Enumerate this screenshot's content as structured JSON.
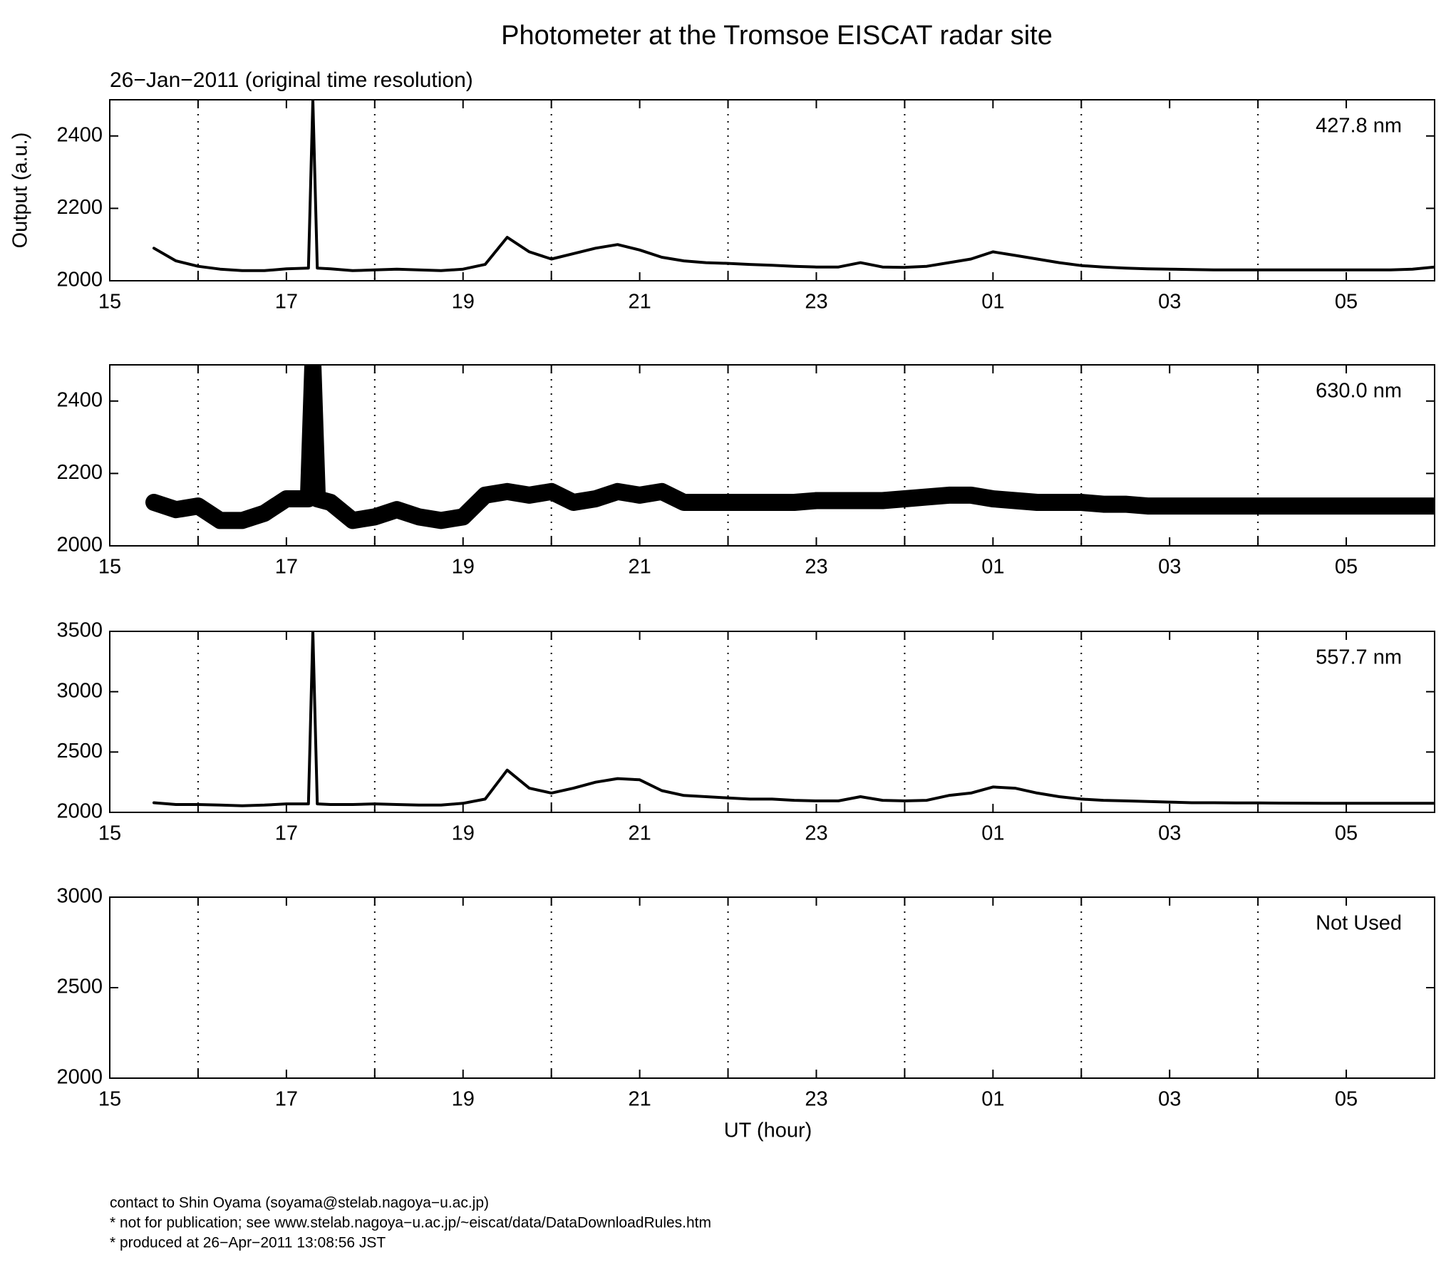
{
  "title": "Photometer at the Tromsoe EISCAT radar site",
  "subtitle": "26−Jan−2011 (original time resolution)",
  "footer": [
    "contact to Shin Oyama (soyama@stelab.nagoya−u.ac.jp)",
    "* not for publication; see www.stelab.nagoya−u.ac.jp/~eiscat/data/DataDownloadRules.htm",
    "* produced at 26−Apr−2011 13:08:56 JST"
  ],
  "chart_data": [
    {
      "type": "line",
      "label": "427.8 nm",
      "ylabel": "Output (a.u.)",
      "x": [
        15.5,
        15.75,
        16,
        16.25,
        16.5,
        16.75,
        17,
        17.25,
        17.3,
        17.35,
        17.5,
        17.75,
        18,
        18.25,
        18.5,
        18.75,
        19,
        19.25,
        19.5,
        19.75,
        20,
        20.25,
        20.5,
        20.75,
        21,
        21.25,
        21.5,
        21.75,
        22,
        22.25,
        22.5,
        22.75,
        23,
        23.25,
        23.5,
        23.75,
        24,
        24.25,
        24.5,
        24.75,
        25,
        25.25,
        25.5,
        25.75,
        26,
        26.25,
        26.5,
        26.75,
        27,
        27.25,
        27.5,
        27.75,
        28,
        28.25,
        28.5,
        28.75,
        29,
        29.25,
        29.5,
        29.75,
        30
      ],
      "values": [
        2090,
        2055,
        2040,
        2032,
        2028,
        2028,
        2033,
        2035,
        2500,
        2035,
        2033,
        2028,
        2030,
        2032,
        2030,
        2028,
        2032,
        2045,
        2120,
        2080,
        2060,
        2075,
        2090,
        2100,
        2085,
        2065,
        2055,
        2050,
        2048,
        2045,
        2043,
        2040,
        2038,
        2038,
        2050,
        2038,
        2037,
        2040,
        2050,
        2060,
        2080,
        2070,
        2060,
        2050,
        2042,
        2038,
        2035,
        2033,
        2032,
        2031,
        2030,
        2030,
        2030,
        2030,
        2030,
        2030,
        2030,
        2030,
        2030,
        2032,
        2038
      ],
      "xlim": [
        15,
        30
      ],
      "xticks": [
        15,
        17,
        19,
        21,
        23,
        {
          "value": 25,
          "label": "01"
        },
        {
          "value": 27,
          "label": "03"
        },
        {
          "value": 29,
          "label": "05"
        }
      ],
      "xgrid": [
        16,
        18,
        20,
        22,
        24,
        26,
        28
      ],
      "ylim": [
        2000,
        2500
      ],
      "yticks": [
        2000,
        2200,
        2400
      ]
    },
    {
      "type": "line",
      "label": "630.0 nm",
      "x": [
        15.5,
        15.75,
        16,
        16.25,
        16.5,
        16.75,
        17,
        17.25,
        17.3,
        17.35,
        17.5,
        17.75,
        18,
        18.25,
        18.5,
        18.75,
        19,
        19.25,
        19.5,
        19.75,
        20,
        20.25,
        20.5,
        20.75,
        21,
        21.25,
        21.5,
        21.75,
        22,
        22.25,
        22.5,
        22.75,
        23,
        23.25,
        23.5,
        23.75,
        24,
        24.25,
        24.5,
        24.75,
        25,
        25.25,
        25.5,
        25.75,
        26,
        26.25,
        26.5,
        26.75,
        27,
        27.25,
        27.5,
        27.75,
        28,
        28.25,
        28.5,
        28.75,
        29,
        29.25,
        29.5,
        29.75,
        30
      ],
      "values": [
        2120,
        2100,
        2110,
        2070,
        2070,
        2090,
        2130,
        2130,
        2500,
        2130,
        2120,
        2070,
        2080,
        2100,
        2080,
        2070,
        2080,
        2140,
        2150,
        2140,
        2150,
        2120,
        2130,
        2150,
        2140,
        2150,
        2120,
        2120,
        2120,
        2120,
        2120,
        2120,
        2125,
        2125,
        2125,
        2125,
        2130,
        2135,
        2140,
        2140,
        2130,
        2125,
        2120,
        2120,
        2120,
        2115,
        2115,
        2110,
        2110,
        2110,
        2110,
        2110,
        2110,
        2110,
        2110,
        2110,
        2110,
        2110,
        2110,
        2110,
        2110
      ],
      "xlim": [
        15,
        30
      ],
      "xticks": [
        15,
        17,
        19,
        21,
        23,
        {
          "value": 25,
          "label": "01"
        },
        {
          "value": 27,
          "label": "03"
        },
        {
          "value": 29,
          "label": "05"
        }
      ],
      "xgrid": [
        16,
        18,
        20,
        22,
        24,
        26,
        28
      ],
      "ylim": [
        2000,
        2500
      ],
      "yticks": [
        2000,
        2200,
        2400
      ]
    },
    {
      "type": "line",
      "label": "557.7 nm",
      "x": [
        15.5,
        15.75,
        16,
        16.25,
        16.5,
        16.75,
        17,
        17.25,
        17.3,
        17.35,
        17.5,
        17.75,
        18,
        18.25,
        18.5,
        18.75,
        19,
        19.25,
        19.5,
        19.75,
        20,
        20.25,
        20.5,
        20.75,
        21,
        21.25,
        21.5,
        21.75,
        22,
        22.25,
        22.5,
        22.75,
        23,
        23.25,
        23.5,
        23.75,
        24,
        24.25,
        24.5,
        24.75,
        25,
        25.25,
        25.5,
        25.75,
        26,
        26.25,
        26.5,
        26.75,
        27,
        27.25,
        27.5,
        27.75,
        28,
        28.25,
        28.5,
        28.75,
        29,
        29.25,
        29.5,
        29.75,
        30
      ],
      "values": [
        2080,
        2065,
        2065,
        2060,
        2055,
        2060,
        2070,
        2070,
        3500,
        2070,
        2065,
        2065,
        2070,
        2065,
        2060,
        2060,
        2075,
        2110,
        2350,
        2200,
        2160,
        2200,
        2250,
        2280,
        2270,
        2180,
        2140,
        2130,
        2120,
        2110,
        2110,
        2100,
        2095,
        2095,
        2130,
        2100,
        2095,
        2100,
        2140,
        2160,
        2210,
        2200,
        2160,
        2130,
        2110,
        2100,
        2095,
        2090,
        2085,
        2080,
        2080,
        2078,
        2078,
        2077,
        2076,
        2075,
        2075,
        2075,
        2075,
        2075,
        2075
      ],
      "xlim": [
        15,
        30
      ],
      "xticks": [
        15,
        17,
        19,
        21,
        23,
        {
          "value": 25,
          "label": "01"
        },
        {
          "value": 27,
          "label": "03"
        },
        {
          "value": 29,
          "label": "05"
        }
      ],
      "xgrid": [
        16,
        18,
        20,
        22,
        24,
        26,
        28
      ],
      "ylim": [
        2000,
        3500
      ],
      "yticks": [
        2000,
        2500,
        3000,
        3500
      ]
    },
    {
      "type": "line",
      "label": "Not Used",
      "xlabel": "UT (hour)",
      "xlim": [
        15,
        30
      ],
      "xticks": [
        15,
        17,
        19,
        21,
        23,
        {
          "value": 25,
          "label": "01"
        },
        {
          "value": 27,
          "label": "03"
        },
        {
          "value": 29,
          "label": "05"
        }
      ],
      "xgrid": [
        16,
        18,
        20,
        22,
        24,
        26,
        28
      ],
      "ylim": [
        2000,
        3000
      ],
      "yticks": [
        2000,
        2500,
        3000
      ]
    }
  ]
}
